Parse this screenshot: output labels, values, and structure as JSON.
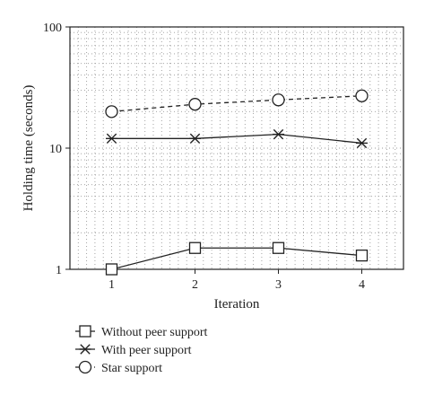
{
  "chart_data": {
    "type": "line",
    "title": "",
    "xlabel": "Iteration",
    "ylabel": "Holding time (seconds)",
    "yscale": "log",
    "ylim": [
      1,
      100
    ],
    "xlim": [
      0.5,
      4.5
    ],
    "x": [
      1,
      2,
      3,
      4
    ],
    "x_ticks": [
      "1",
      "2",
      "3",
      "4"
    ],
    "y_ticks": [
      "1",
      "10",
      "100"
    ],
    "grid": true,
    "legend_position": "bottom",
    "series": [
      {
        "name": "Without peer support",
        "values": [
          1.0,
          1.5,
          1.5,
          1.3
        ],
        "marker": "square",
        "line": "solid",
        "color": "#222222"
      },
      {
        "name": "With peer support",
        "values": [
          12,
          12,
          13,
          11
        ],
        "marker": "asterisk",
        "line": "solid",
        "color": "#222222"
      },
      {
        "name": "Star support",
        "values": [
          20,
          23,
          25,
          27
        ],
        "marker": "circle",
        "line": "dashed",
        "color": "#222222"
      }
    ]
  }
}
